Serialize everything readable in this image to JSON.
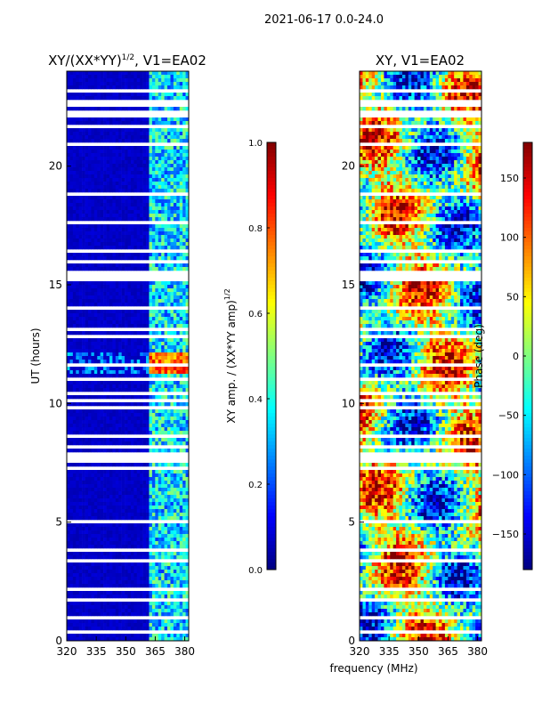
{
  "suptitle": "2021-06-17 0.0-24.0",
  "shared_xlabel": "frequency (MHz)",
  "chart_data": [
    {
      "type": "heatmap",
      "title_main": "XY/(XX*YY)",
      "title_sup": "1/2",
      "title_tail": ", V1=EA02",
      "ylabel": "UT (hours)",
      "xlabel": "frequency (MHz)",
      "xlim": [
        320,
        382
      ],
      "ylim": [
        0,
        24
      ],
      "xticks": [
        320,
        335,
        350,
        365,
        380
      ],
      "yticks": [
        0,
        5,
        10,
        15,
        20
      ],
      "colorbar": {
        "label_main": "XY amp. / (XX*YY amp)",
        "label_sup": "1/2",
        "range": [
          0.0,
          1.0
        ],
        "ticks": [
          "0.0",
          "0.2",
          "0.4",
          "0.6",
          "0.8",
          "1.0"
        ],
        "colormap": "jet"
      },
      "description_values": {
        "background_level": 0.05,
        "high_band_range_mhz": [
          362,
          382
        ],
        "high_band_level": 0.35,
        "peak_ut_hours": [
          11.2,
          12.1
        ],
        "peak_level": 0.9
      }
    },
    {
      "type": "heatmap",
      "title": "XY, V1=EA02",
      "ylabel": "UT (hours)",
      "xlabel": "frequency (MHz)",
      "xlim": [
        320,
        382
      ],
      "ylim": [
        0,
        24
      ],
      "xticks": [
        320,
        335,
        350,
        365,
        380
      ],
      "yticks": [
        0,
        5,
        10,
        15,
        20
      ],
      "colorbar": {
        "label": "Phase (deg)",
        "range": [
          -180,
          180
        ],
        "ticks": [
          "150",
          "100",
          "50",
          "0",
          "−50",
          "−100",
          "−150"
        ],
        "colormap": "jet"
      }
    }
  ],
  "flagged_ut_gaps_hours": [
    [
      0.3,
      0.5
    ],
    [
      0.85,
      1.0
    ],
    [
      1.3,
      1.38
    ],
    [
      1.7,
      1.78
    ],
    [
      2.15,
      2.22
    ],
    [
      2.55,
      2.6
    ],
    [
      3.0,
      3.06
    ],
    [
      3.35,
      3.42
    ],
    [
      3.8,
      3.85
    ],
    [
      4.3,
      4.36
    ],
    [
      5.0,
      5.06
    ],
    [
      5.55,
      5.6
    ],
    [
      6.0,
      6.05
    ],
    [
      6.7,
      6.75
    ],
    [
      7.2,
      7.28
    ],
    [
      7.55,
      7.9
    ],
    [
      8.15,
      8.2
    ],
    [
      8.6,
      8.65
    ],
    [
      9.0,
      9.05
    ],
    [
      9.4,
      9.45
    ],
    [
      9.8,
      9.85
    ],
    [
      10.1,
      10.15
    ],
    [
      10.4,
      10.45
    ],
    [
      10.75,
      10.8
    ],
    [
      11.0,
      11.04
    ],
    [
      11.6,
      11.64
    ],
    [
      12.0,
      12.04
    ],
    [
      12.4,
      12.44
    ],
    [
      12.8,
      12.86
    ],
    [
      13.1,
      13.16
    ],
    [
      13.5,
      13.55
    ],
    [
      14.0,
      14.05
    ],
    [
      14.5,
      14.55
    ],
    [
      14.85,
      14.9
    ],
    [
      15.2,
      15.6
    ],
    [
      15.85,
      16.05
    ],
    [
      16.3,
      16.55
    ],
    [
      16.8,
      16.86
    ],
    [
      17.2,
      17.26
    ],
    [
      17.6,
      17.65
    ],
    [
      18.0,
      18.05
    ],
    [
      18.4,
      18.45
    ],
    [
      18.8,
      18.85
    ],
    [
      19.2,
      19.25
    ],
    [
      19.6,
      19.65
    ],
    [
      20.1,
      20.15
    ],
    [
      20.5,
      20.56
    ],
    [
      20.9,
      20.95
    ],
    [
      21.3,
      21.35
    ],
    [
      21.6,
      21.8
    ],
    [
      22.1,
      22.3
    ],
    [
      22.5,
      22.8
    ],
    [
      23.05,
      23.2
    ],
    [
      23.35,
      23.45
    ]
  ]
}
